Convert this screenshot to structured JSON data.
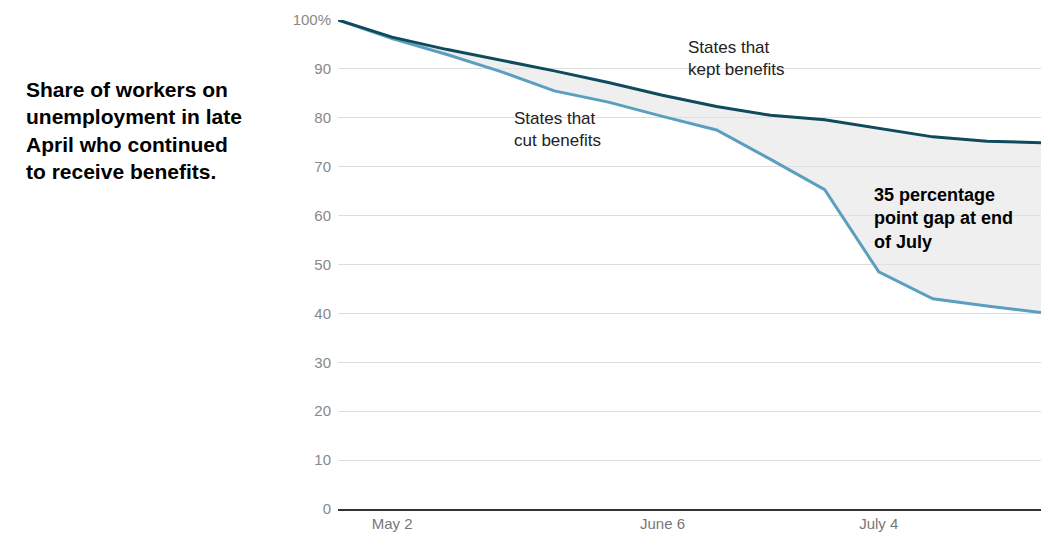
{
  "chart_data": {
    "type": "line",
    "title": "Share of workers on unemployment in late April who continued to receive benefits.",
    "categories": [
      null,
      "May 2",
      null,
      null,
      null,
      null,
      "June 6",
      null,
      null,
      null,
      "July 4",
      null,
      null,
      null
    ],
    "series": [
      {
        "name": "States that kept benefits",
        "color": "#0e4b5c",
        "values": [
          100,
          96.5,
          94,
          91.8,
          89.6,
          87.2,
          84.6,
          82.3,
          80.5,
          79.6,
          77.8,
          76.1,
          75.2,
          74.9
        ]
      },
      {
        "name": "States that cut benefits",
        "color": "#5b9fc0",
        "values": [
          100,
          96.2,
          93,
          89.5,
          85.5,
          83.2,
          80.3,
          77.5,
          71.5,
          65.3,
          48.5,
          43,
          41.5,
          40.2
        ]
      }
    ],
    "annotations": [
      "35 percentage point gap at end of July"
    ],
    "ylim": [
      0,
      100
    ],
    "yticks": [
      0,
      10,
      20,
      30,
      40,
      50,
      60,
      70,
      80,
      90,
      {
        "value": 100,
        "label": "100%"
      }
    ],
    "grid": true
  }
}
